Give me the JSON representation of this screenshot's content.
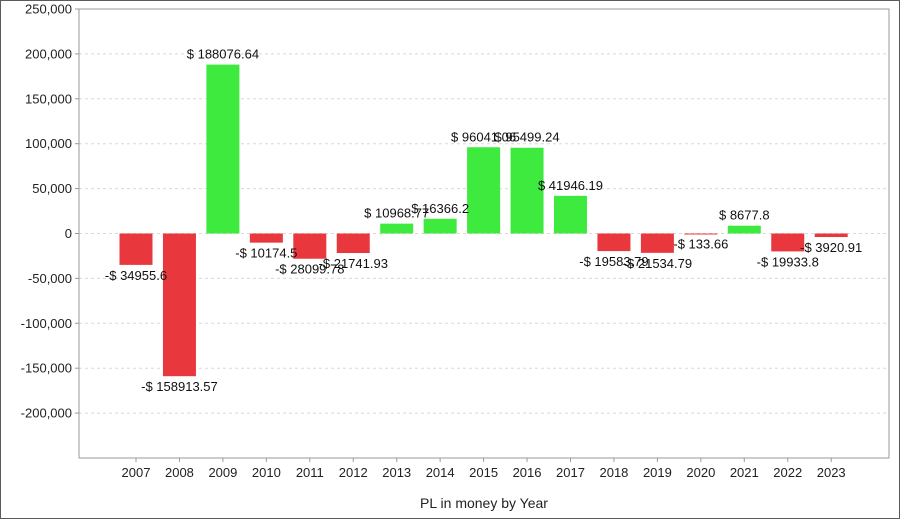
{
  "chart_data": {
    "type": "bar",
    "title": "",
    "xlabel": "PL in money by Year",
    "ylabel": "",
    "ylim": [
      -250000,
      250000
    ],
    "yticks": [
      -200000,
      -150000,
      -100000,
      -50000,
      0,
      50000,
      100000,
      150000,
      200000,
      250000
    ],
    "ytick_labels": [
      "-200,000",
      "-150,000",
      "-100,000",
      "-50,000",
      "0",
      "50,000",
      "100,000",
      "150,000",
      "200,000",
      "250,000"
    ],
    "grid": true,
    "categories": [
      "2007",
      "2008",
      "2009",
      "2010",
      "2011",
      "2012",
      "2013",
      "2014",
      "2015",
      "2016",
      "2017",
      "2018",
      "2019",
      "2020",
      "2021",
      "2022",
      "2023"
    ],
    "values": [
      -34955.6,
      -158913.57,
      188076.64,
      -10174.5,
      -28099.78,
      -21741.93,
      10968.77,
      16366.2,
      96041.06,
      95499.24,
      41946.19,
      -19583.79,
      -21534.79,
      -133.66,
      8677.8,
      -19933.8,
      -3920.91
    ],
    "data_labels": [
      "-$ 34955.6",
      "-$ 158913.57",
      "$ 188076.64",
      "-$ 10174.5",
      "-$ 28099.78",
      "-$ 21741.93",
      "$ 10968.77",
      "$ 16366.2",
      "$ 96041.06",
      "$ 95499.24",
      "$ 41946.19",
      "-$ 19583.79",
      "-$ 21534.79",
      "-$ 133.66",
      "$ 8677.8",
      "-$ 19933.8",
      "-$ 3920.91"
    ],
    "colors": {
      "positive": "#3dea3d",
      "negative": "#e8383d",
      "grid": "#d8d8d8",
      "axis": "#9a9a9a"
    }
  }
}
